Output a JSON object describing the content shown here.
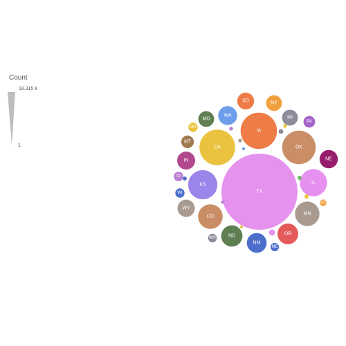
{
  "chart_data": {
    "type": "bubble",
    "legend": {
      "title": "Count",
      "max_label": "18.315 k",
      "min_label": "1",
      "placement": "left"
    },
    "bubbles": [
      {
        "label": "TX",
        "value": 18315,
        "color": "#e592ee"
      },
      {
        "label": "IA",
        "value": 4200,
        "color": "#ed7c46"
      },
      {
        "label": "CA",
        "value": 4020,
        "color": "#e9c33f"
      },
      {
        "label": "OK",
        "value": 3540,
        "color": "#c98e66"
      },
      {
        "label": "KS",
        "value": 2690,
        "color": "#9b84ea"
      },
      {
        "label": "IL",
        "value": 2340,
        "color": "#e690f0"
      },
      {
        "label": "MN",
        "value": 1900,
        "color": "#a99a8f"
      },
      {
        "label": "CO",
        "value": 1920,
        "color": "#c98e66"
      },
      {
        "label": "ND",
        "value": 1430,
        "color": "#5f7e52"
      },
      {
        "label": "OR",
        "value": 1360,
        "color": "#e45a5a"
      },
      {
        "label": "NM",
        "value": 1230,
        "color": "#4d6fcb"
      },
      {
        "label": "WA",
        "value": 1140,
        "color": "#6d9eea"
      },
      {
        "label": "NE",
        "value": 1060,
        "color": "#961d6b"
      },
      {
        "label": "SD",
        "value": 900,
        "color": "#ed7c46"
      },
      {
        "label": "IN",
        "value": 1030,
        "color": "#b2488e"
      },
      {
        "label": "WY",
        "value": 940,
        "color": "#a99a8f"
      },
      {
        "label": "MI",
        "value": 800,
        "color": "#8d8d99"
      },
      {
        "label": "MO",
        "value": 790,
        "color": "#5f7e52"
      },
      {
        "label": "NY",
        "value": 790,
        "color": "#f0a03c"
      },
      {
        "label": "MT",
        "value": 500,
        "color": "#a07a4f"
      },
      {
        "label": "PA",
        "value": 430,
        "color": "#a664c9"
      },
      {
        "label": "ID",
        "value": 290,
        "color": "#b97fd3"
      },
      {
        "label": "WI",
        "value": 270,
        "color": "#4d6fcb"
      },
      {
        "label": "OH",
        "value": 270,
        "color": "#e9c33f"
      },
      {
        "label": "WV",
        "value": 240,
        "color": "#8d8d99"
      },
      {
        "label": "ME",
        "value": 220,
        "color": "#4d6fcb"
      },
      {
        "label": "AZ",
        "value": 140,
        "color": "#f0a03c"
      },
      {
        "label": "",
        "value": 120,
        "color": "#e592ee"
      },
      {
        "label": "",
        "value": 70,
        "color": "#8d8d99"
      },
      {
        "label": "",
        "value": 55,
        "color": "#e9c33f"
      },
      {
        "label": "",
        "value": 55,
        "color": "#6fb36a"
      },
      {
        "label": "",
        "value": 50,
        "color": "#4d6fcb"
      },
      {
        "label": "",
        "value": 45,
        "color": "#b97fd3"
      },
      {
        "label": "",
        "value": 45,
        "color": "#e9c33f"
      },
      {
        "label": "",
        "value": 40,
        "color": "#a99a8f"
      },
      {
        "label": "",
        "value": 35,
        "color": "#b97fd3"
      },
      {
        "label": "",
        "value": 30,
        "color": "#e9c33f"
      },
      {
        "label": "",
        "value": 30,
        "color": "#6d9eea"
      }
    ]
  }
}
